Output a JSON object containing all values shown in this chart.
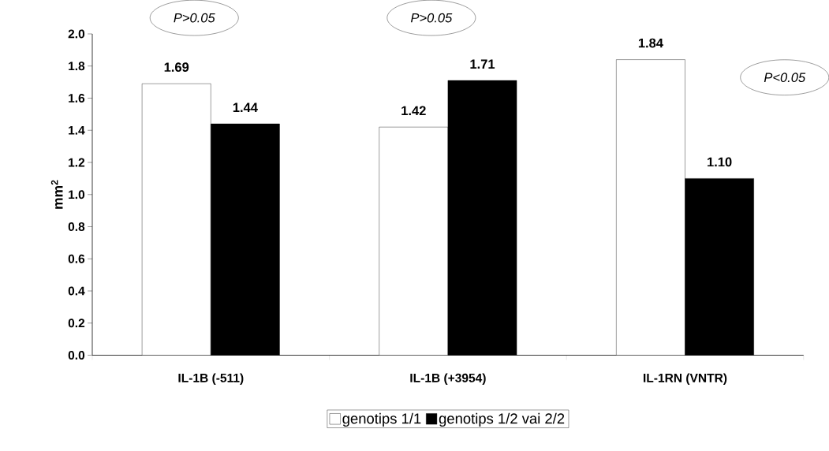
{
  "chart_data": {
    "type": "bar",
    "categories": [
      "IL-1B (-511)",
      "IL-1B (+3954)",
      "IL-1RN (VNTR)"
    ],
    "series": [
      {
        "name": "genotips 1/1",
        "color": "#ffffff",
        "values": [
          1.69,
          1.42,
          1.84
        ],
        "value_labels": [
          "1.69",
          "1.42",
          "1.84"
        ]
      },
      {
        "name": "genotips 1/2 vai 2/2",
        "color": "#000000",
        "values": [
          1.44,
          1.71,
          1.1
        ],
        "value_labels": [
          "1.44",
          "1.71",
          "1.10"
        ]
      }
    ],
    "ylabel": "mm$^{2}$",
    "ylim": [
      0,
      2.0
    ],
    "yticks": [
      {
        "value": 0,
        "label": "0.0"
      },
      {
        "value": 0.2,
        "label": "0.2"
      },
      {
        "value": 0.4,
        "label": "0.4"
      },
      {
        "value": 0.6,
        "label": "0.6"
      },
      {
        "value": 0.8,
        "label": "0.8"
      },
      {
        "value": 1.0,
        "label": "1.0"
      },
      {
        "value": 1.2,
        "label": "1.2"
      },
      {
        "value": 1.4,
        "label": "1.4"
      },
      {
        "value": 1.6,
        "label": "1.6"
      },
      {
        "value": 1.8,
        "label": "1.8"
      },
      {
        "value": 2.0,
        "label": "2.0"
      }
    ],
    "legend": "bottom",
    "grid": false,
    "annotations": [
      "P>0.05",
      "P>0.05",
      "P<0.05"
    ]
  }
}
